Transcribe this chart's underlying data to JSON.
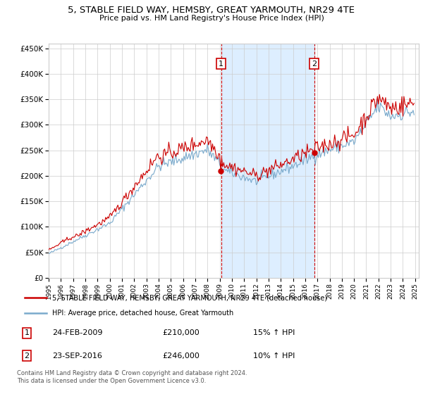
{
  "title": "5, STABLE FIELD WAY, HEMSBY, GREAT YARMOUTH, NR29 4TE",
  "subtitle": "Price paid vs. HM Land Registry's House Price Index (HPI)",
  "legend_line1": "5, STABLE FIELD WAY, HEMSBY, GREAT YARMOUTH, NR29 4TE (detached house)",
  "legend_line2": "HPI: Average price, detached house, Great Yarmouth",
  "transaction1_date": "24-FEB-2009",
  "transaction1_price": "£210,000",
  "transaction1_hpi": "15% ↑ HPI",
  "transaction2_date": "23-SEP-2016",
  "transaction2_price": "£246,000",
  "transaction2_hpi": "10% ↑ HPI",
  "footnote": "Contains HM Land Registry data © Crown copyright and database right 2024.\nThis data is licensed under the Open Government Licence v3.0.",
  "red_color": "#cc0000",
  "blue_color": "#7aaacc",
  "shaded_color": "#ddeeff",
  "background_color": "#ffffff",
  "grid_color": "#cccccc",
  "transaction1_x": 2009.12,
  "transaction2_x": 2016.73,
  "transaction1_y": 210000,
  "transaction2_y": 246000,
  "ylim_min": 0,
  "ylim_max": 460000,
  "xlim_min": 1995.0,
  "xlim_max": 2025.3,
  "yticks": [
    0,
    50000,
    100000,
    150000,
    200000,
    250000,
    300000,
    350000,
    400000,
    450000
  ],
  "ytick_labels": [
    "£0",
    "£50K",
    "£100K",
    "£150K",
    "£200K",
    "£250K",
    "£300K",
    "£350K",
    "£400K",
    "£450K"
  ],
  "xticks": [
    1995,
    1996,
    1997,
    1998,
    1999,
    2000,
    2001,
    2002,
    2003,
    2004,
    2005,
    2006,
    2007,
    2008,
    2009,
    2010,
    2011,
    2012,
    2013,
    2014,
    2015,
    2016,
    2017,
    2018,
    2019,
    2020,
    2021,
    2022,
    2023,
    2024,
    2025
  ]
}
